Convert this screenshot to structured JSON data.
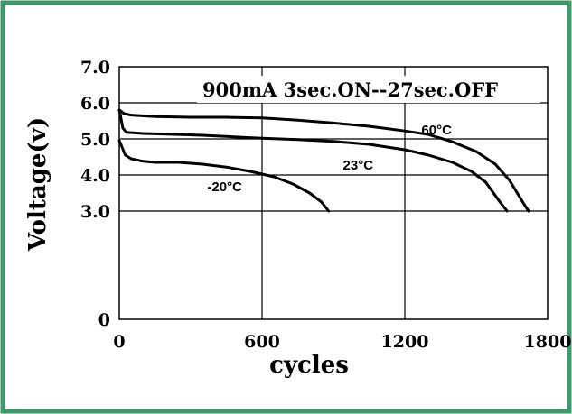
{
  "border_color": "#3d9a6a",
  "chart_data": {
    "type": "line",
    "title": "900mA  3sec.ON--27sec.OFF",
    "xlabel": "cycles",
    "ylabel": "Voltage(v)",
    "xlim": [
      0,
      1800
    ],
    "ylim": [
      0,
      7.0
    ],
    "x_ticks": [
      0,
      600,
      1200,
      1800
    ],
    "x_tick_labels": [
      "0",
      "600",
      "1200",
      "1800"
    ],
    "y_ticks": [
      0,
      3.0,
      4.0,
      5.0,
      6.0,
      7.0
    ],
    "y_tick_labels": [
      "0",
      "3.0",
      "4.0",
      "5.0",
      "6.0",
      "7.0"
    ],
    "grid": true,
    "series": [
      {
        "name": "60°C",
        "points": [
          [
            0,
            5.8
          ],
          [
            5,
            5.78
          ],
          [
            20,
            5.7
          ],
          [
            50,
            5.66
          ],
          [
            150,
            5.62
          ],
          [
            300,
            5.6
          ],
          [
            450,
            5.6
          ],
          [
            600,
            5.58
          ],
          [
            750,
            5.52
          ],
          [
            900,
            5.44
          ],
          [
            1050,
            5.35
          ],
          [
            1200,
            5.22
          ],
          [
            1300,
            5.12
          ],
          [
            1400,
            4.92
          ],
          [
            1500,
            4.65
          ],
          [
            1580,
            4.3
          ],
          [
            1640,
            3.85
          ],
          [
            1700,
            3.2
          ],
          [
            1720,
            3.0
          ]
        ]
      },
      {
        "name": "23°C",
        "points": [
          [
            0,
            5.8
          ],
          [
            5,
            5.65
          ],
          [
            15,
            5.3
          ],
          [
            30,
            5.18
          ],
          [
            100,
            5.15
          ],
          [
            200,
            5.13
          ],
          [
            350,
            5.1
          ],
          [
            500,
            5.05
          ],
          [
            600,
            5.02
          ],
          [
            750,
            4.98
          ],
          [
            900,
            4.93
          ],
          [
            1050,
            4.85
          ],
          [
            1200,
            4.7
          ],
          [
            1300,
            4.55
          ],
          [
            1400,
            4.35
          ],
          [
            1480,
            4.1
          ],
          [
            1540,
            3.8
          ],
          [
            1600,
            3.25
          ],
          [
            1630,
            3.0
          ]
        ]
      },
      {
        "name": "-20°C",
        "points": [
          [
            0,
            4.95
          ],
          [
            10,
            4.8
          ],
          [
            25,
            4.55
          ],
          [
            50,
            4.45
          ],
          [
            100,
            4.38
          ],
          [
            150,
            4.35
          ],
          [
            250,
            4.35
          ],
          [
            350,
            4.3
          ],
          [
            450,
            4.22
          ],
          [
            550,
            4.1
          ],
          [
            650,
            3.95
          ],
          [
            730,
            3.75
          ],
          [
            800,
            3.5
          ],
          [
            850,
            3.25
          ],
          [
            880,
            3.0
          ]
        ]
      }
    ],
    "annotations": [
      {
        "text": "60°C",
        "series": "60°C"
      },
      {
        "text": "23°C",
        "series": "23°C"
      },
      {
        "text": "-20°C",
        "series": "-20°C"
      }
    ]
  }
}
